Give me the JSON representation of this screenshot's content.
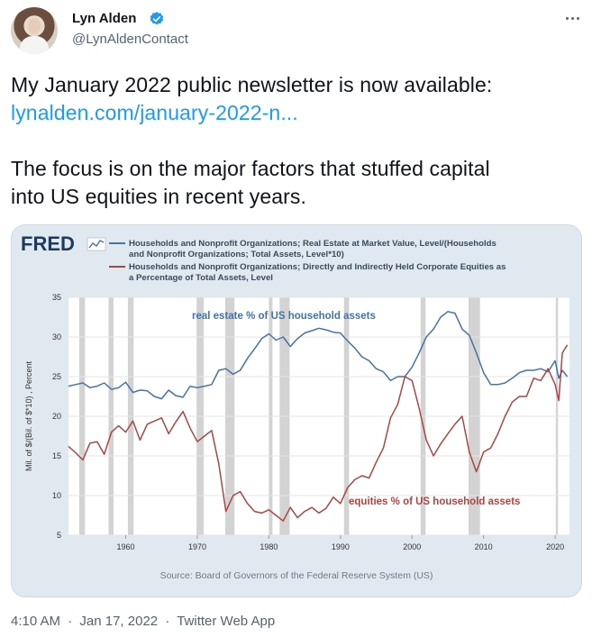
{
  "tweet": {
    "author_name": "Lyn Alden",
    "author_handle": "@LynAldenContact",
    "text_line1": "My January 2022 public newsletter is now available:",
    "link_text": "lynalden.com/january-2022-n...",
    "text_line2": "The focus is on the major factors that stuffed capital",
    "text_line3": "into US equities in recent years.",
    "time": "4:10 AM",
    "date": "Jan 17, 2022",
    "separator": "·",
    "app": "Twitter Web App"
  },
  "colors": {
    "link": "#1d9bf0",
    "verified": "#1d9bf0",
    "real_estate_line": "#4572a7",
    "equities_line": "#aa4643",
    "recession": "#c8c8c8",
    "chart_bg": "#e1e9f0",
    "plot_bg": "#ffffff"
  },
  "chart_data": {
    "type": "line",
    "source_logo": "FRED",
    "legend": [
      "Households and Nonprofit Organizations; Real Estate at Market Value, Level/(Households and Nonprofit Organizations; Total Assets, Level*10)",
      "Households and Nonprofit Organizations; Directly and Indirectly Held Corporate Equities as a Percentage of Total Assets, Level"
    ],
    "legend_lines": [
      "Households and Nonprofit Organizations; Real Estate at Market Value, Level/(Households",
      "and Nonprofit Organizations; Total Assets, Level*10)",
      "Households and Nonprofit Organizations; Directly and Indirectly Held Corporate Equities as",
      "a Percentage of Total Assets, Level"
    ],
    "ylabel": "Mil. of $/(Bil. of $*10) , Percent",
    "ylim": [
      5,
      35
    ],
    "yticks": [
      "35",
      "30",
      "25",
      "20",
      "15",
      "10",
      "5"
    ],
    "xlim": [
      1952,
      2022
    ],
    "xticks": [
      "1960",
      "1970",
      "1980",
      "1990",
      "2000",
      "2010",
      "2020"
    ],
    "source": "Source: Board of Governors of the Federal Reserve System (US)",
    "annotations": {
      "real_estate": "real estate % of US household assets",
      "equities": "equities % of US household assets"
    },
    "recessions": [
      [
        1953.5,
        1954.3
      ],
      [
        1957.6,
        1958.3
      ],
      [
        1960.3,
        1961.1
      ],
      [
        1969.9,
        1970.9
      ],
      [
        1973.9,
        1975.2
      ],
      [
        1980.0,
        1980.5
      ],
      [
        1981.5,
        1982.9
      ],
      [
        1990.5,
        1991.2
      ],
      [
        2001.2,
        2001.9
      ],
      [
        2007.9,
        2009.5
      ],
      [
        2020.1,
        2020.4
      ]
    ],
    "series": [
      {
        "name": "Real estate % of household assets",
        "x": [
          1952,
          1953,
          1954,
          1955,
          1956,
          1957,
          1958,
          1959,
          1960,
          1961,
          1962,
          1963,
          1964,
          1965,
          1966,
          1967,
          1968,
          1969,
          1970,
          1971,
          1972,
          1973,
          1974,
          1975,
          1976,
          1977,
          1978,
          1979,
          1980,
          1981,
          1982,
          1983,
          1984,
          1985,
          1986,
          1987,
          1988,
          1989,
          1990,
          1991,
          1992,
          1993,
          1994,
          1995,
          1996,
          1997,
          1998,
          1999,
          2000,
          2001,
          2002,
          2003,
          2004,
          2005,
          2006,
          2007,
          2008,
          2009,
          2010,
          2011,
          2012,
          2013,
          2014,
          2015,
          2016,
          2017,
          2018,
          2019,
          2020,
          2020.5,
          2021,
          2021.7
        ],
        "values": [
          23.8,
          24.0,
          24.2,
          23.6,
          23.8,
          24.2,
          23.4,
          23.6,
          24.3,
          23.0,
          23.3,
          23.2,
          22.5,
          22.2,
          23.3,
          22.6,
          22.4,
          23.8,
          23.6,
          23.8,
          24.0,
          25.8,
          26.0,
          25.3,
          25.8,
          27.3,
          28.5,
          29.8,
          30.4,
          29.6,
          30.0,
          28.8,
          29.8,
          30.5,
          30.8,
          31.1,
          30.9,
          30.6,
          30.5,
          29.5,
          28.6,
          27.5,
          27.0,
          26.0,
          25.6,
          24.5,
          25.0,
          25.0,
          26.2,
          28.0,
          30.0,
          31.0,
          32.5,
          33.2,
          33.0,
          31.0,
          30.2,
          28.0,
          25.5,
          24.0,
          24.0,
          24.2,
          24.8,
          25.5,
          25.8,
          25.8,
          26.0,
          25.6,
          27.0,
          24.8,
          25.8,
          25.0
        ]
      },
      {
        "name": "Corporate equities % of household assets",
        "x": [
          1952,
          1953,
          1954,
          1955,
          1956,
          1957,
          1958,
          1959,
          1960,
          1961,
          1962,
          1963,
          1964,
          1965,
          1966,
          1967,
          1968,
          1969,
          1970,
          1971,
          1972,
          1973,
          1974,
          1975,
          1976,
          1977,
          1978,
          1979,
          1980,
          1981,
          1982,
          1983,
          1984,
          1985,
          1986,
          1987,
          1988,
          1989,
          1990,
          1991,
          1992,
          1993,
          1994,
          1995,
          1996,
          1997,
          1998,
          1999,
          2000,
          2001,
          2002,
          2003,
          2004,
          2005,
          2006,
          2007,
          2008,
          2009,
          2010,
          2011,
          2012,
          2013,
          2014,
          2015,
          2016,
          2017,
          2018,
          2019,
          2020,
          2020.5,
          2021,
          2021.7
        ],
        "values": [
          16.2,
          15.4,
          14.5,
          16.6,
          16.8,
          15.2,
          18.0,
          18.8,
          18.0,
          19.4,
          17.0,
          19.0,
          19.4,
          19.8,
          17.8,
          19.3,
          20.6,
          18.5,
          16.8,
          17.5,
          18.2,
          14.0,
          8.0,
          10.0,
          10.5,
          9.0,
          8.0,
          7.8,
          8.2,
          7.5,
          6.8,
          8.5,
          7.2,
          8.0,
          8.5,
          7.8,
          8.4,
          9.8,
          9.0,
          11.0,
          12.0,
          12.5,
          12.2,
          14.2,
          16.0,
          19.8,
          21.5,
          25.0,
          24.5,
          21.0,
          17.0,
          15.0,
          16.5,
          17.8,
          19.0,
          20.0,
          15.5,
          13.0,
          15.5,
          16.0,
          17.8,
          20.0,
          21.8,
          22.5,
          22.5,
          24.8,
          24.5,
          26.0,
          24.0,
          22.0,
          28.0,
          29.0
        ]
      }
    ]
  }
}
